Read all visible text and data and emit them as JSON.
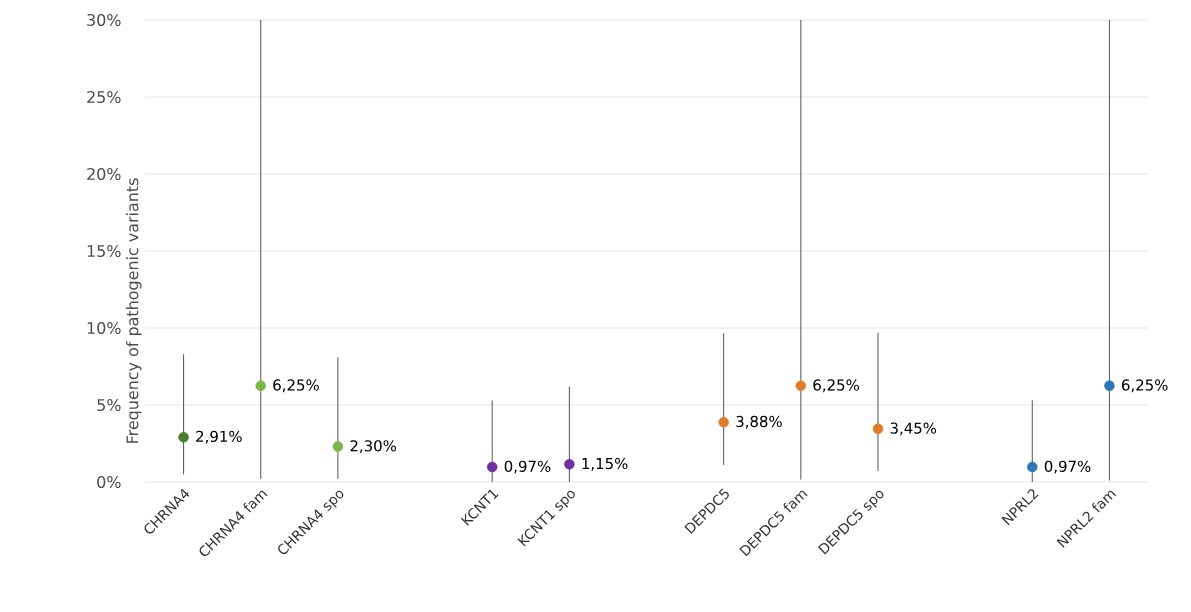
{
  "chart_data": {
    "type": "scatter",
    "ylabel": "Frequency of pathogenic variants",
    "categories": [
      "CHRNA4",
      "CHRNA4 fam",
      "CHRNA4 spo",
      null,
      "KCNT1",
      "KCNT1 spo",
      null,
      "DEPDC5",
      "DEPDC5 fam",
      "DEPDC5 spo",
      null,
      "NPRL2",
      "NPRL2 fam"
    ],
    "values": [
      2.91,
      6.25,
      2.3,
      null,
      0.97,
      1.15,
      null,
      3.88,
      6.25,
      3.45,
      null,
      0.97,
      6.25
    ],
    "value_labels": [
      "2,91%",
      "6,25%",
      "2,30%",
      null,
      "0,97%",
      "1,15%",
      null,
      "3,88%",
      "6,25%",
      "3,45%",
      null,
      "0,97%",
      "6,25%"
    ],
    "errors": [
      [
        0.5,
        8.3
      ],
      [
        0.2,
        30
      ],
      [
        0.2,
        8.1
      ],
      null,
      [
        0,
        5.3
      ],
      [
        0,
        6.2
      ],
      null,
      [
        1.1,
        9.65
      ],
      [
        0.15,
        30
      ],
      [
        0.7,
        9.7
      ],
      null,
      [
        0,
        5.3
      ],
      [
        0.1,
        30
      ]
    ],
    "colors": [
      "#4e7a2e",
      "#7ab648",
      "#7ab648",
      "#7ab648",
      "#7030a0",
      "#7030a0",
      "#7030a0",
      "#e07b28",
      "#e07b28",
      "#e07b28",
      "#e07b28",
      "#2e75b6",
      "#2e75b6"
    ],
    "ylim": [
      0,
      30
    ],
    "yticks": [
      {
        "value": 0,
        "label": "0%"
      },
      {
        "value": 5,
        "label": "5%"
      },
      {
        "value": 10,
        "label": "10%"
      },
      {
        "value": 15,
        "label": "15%"
      },
      {
        "value": 20,
        "label": "20%"
      },
      {
        "value": 25,
        "label": "25%"
      },
      {
        "value": 30,
        "label": "30%"
      }
    ],
    "grid": "y",
    "marker": "circle"
  }
}
